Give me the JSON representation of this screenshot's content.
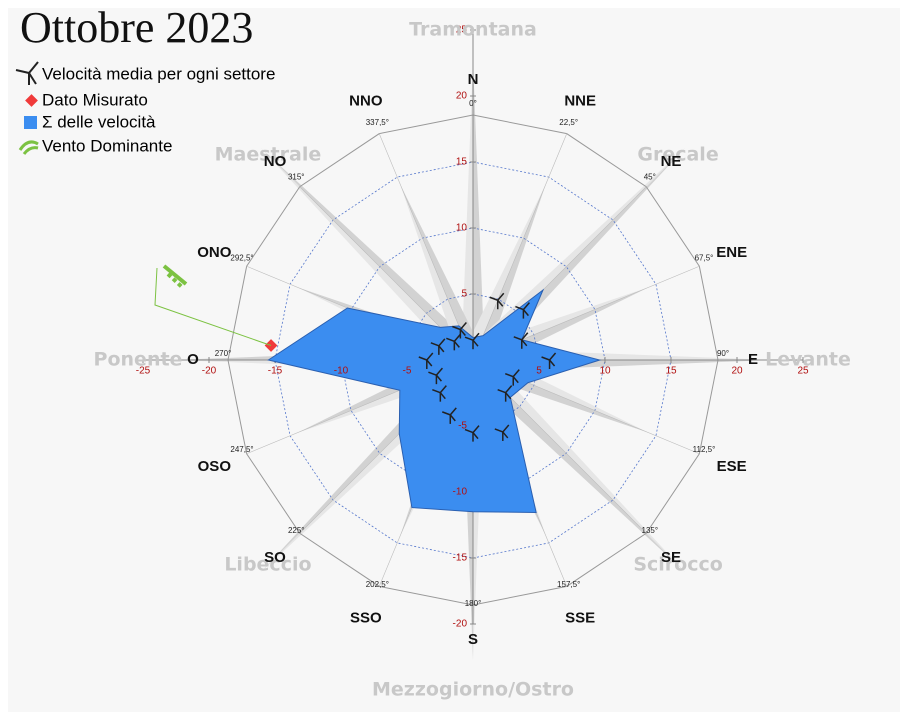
{
  "chart_data": {
    "type": "radar",
    "title": "Ottobre 2023",
    "directions": [
      "N",
      "NNE",
      "NE",
      "ENE",
      "E",
      "ESE",
      "SE",
      "SSE",
      "S",
      "SSO",
      "SO",
      "OSO",
      "O",
      "ONO",
      "NO",
      "NNO"
    ],
    "degrees": [
      "0°",
      "22,5°",
      "45°",
      "67,5°",
      "90°",
      "112,5°",
      "135°",
      "157,5°",
      "180°",
      "202,5°",
      "225°",
      "247,5°",
      "270°",
      "292,5°",
      "315°",
      "337,5°"
    ],
    "winds": [
      "Tramontana",
      "Grecale",
      "Levante",
      "Scirocco",
      "Mezzogiorno/Ostro",
      "Libeccio",
      "Ponente",
      "Maestrale"
    ],
    "series": [
      {
        "name": "Σ delle velocità",
        "color": "#3b8df0",
        "values": [
          1.7,
          2.0,
          7.5,
          4.0,
          9.6,
          4.5,
          4.0,
          12.5,
          11.5,
          12.1,
          7.9,
          6.0,
          15.5,
          10.3,
          3.5,
          2.8
        ]
      },
      {
        "name": "Velocità media per ogni settore",
        "color": "#222222",
        "values": [
          1.5,
          4.9,
          5.4,
          4.0,
          5.8,
          3.3,
          3.5,
          5.9,
          5.5,
          4.5,
          3.5,
          3.0,
          3.5,
          2.8,
          2.0,
          2.5
        ]
      }
    ],
    "measured": {
      "name": "Dato Misurato",
      "color": "#f03a3a",
      "x": -15.3,
      "y": 1.1
    },
    "dominant": {
      "name": "Vento Dominante",
      "color": "#7cc242"
    },
    "xlim": [
      -25,
      25
    ],
    "ylim": [
      -20,
      25
    ],
    "xticks": [
      -25,
      -20,
      -15,
      -10,
      -5,
      5,
      10,
      15,
      20,
      25
    ],
    "yticks": [
      -20,
      -15,
      -10,
      -5,
      5,
      10,
      15,
      20,
      25
    ],
    "tick_color": "#b01010"
  }
}
